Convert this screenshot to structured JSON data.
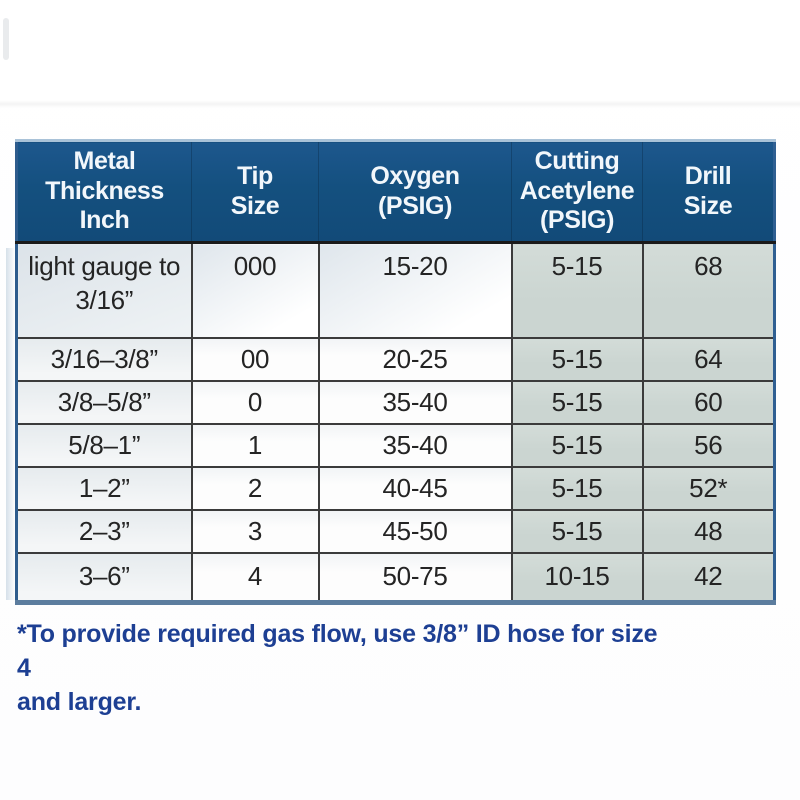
{
  "colors": {
    "header_bg": "#14507f",
    "header_text": "#f2f7fb",
    "highlight_cell_bg": "#ccd6d2",
    "cell_text": "#242424",
    "inner_border": "#3b3b3b",
    "outer_border_blue": "#2f5f92",
    "bottom_border_steel": "#5c7d9e",
    "footnote_text": "#1d3f93"
  },
  "table": {
    "headers": [
      {
        "id": "thickness",
        "label": "Metal\nThickness\nInch"
      },
      {
        "id": "tip",
        "label": "Tip\nSize"
      },
      {
        "id": "oxygen",
        "label": "Oxygen\n(PSIG)"
      },
      {
        "id": "acetylene",
        "label": "Cutting\nAcetylene\n(PSIG)"
      },
      {
        "id": "drill",
        "label": "Drill\nSize"
      }
    ],
    "rows": [
      {
        "thickness": "light gauge to\n3/16”",
        "tip": "000",
        "oxygen": "15-20",
        "acetylene": "5-15",
        "drill": "68"
      },
      {
        "thickness": "3/16–3/8”",
        "tip": "00",
        "oxygen": "20-25",
        "acetylene": "5-15",
        "drill": "64"
      },
      {
        "thickness": "3/8–5/8”",
        "tip": "0",
        "oxygen": "35-40",
        "acetylene": "5-15",
        "drill": "60"
      },
      {
        "thickness": "5/8–1”",
        "tip": "1",
        "oxygen": "35-40",
        "acetylene": "5-15",
        "drill": "56"
      },
      {
        "thickness": "1–2”",
        "tip": "2",
        "oxygen": "40-45",
        "acetylene": "5-15",
        "drill": "52*"
      },
      {
        "thickness": "2–3”",
        "tip": "3",
        "oxygen": "45-50",
        "acetylene": "5-15",
        "drill": "48"
      },
      {
        "thickness": "3–6”",
        "tip": "4",
        "oxygen": "50-75",
        "acetylene": "10-15",
        "drill": "42"
      }
    ]
  },
  "footnote": {
    "text": "*To provide required gas flow, use 3/8” ID hose for size 4\nand larger."
  }
}
